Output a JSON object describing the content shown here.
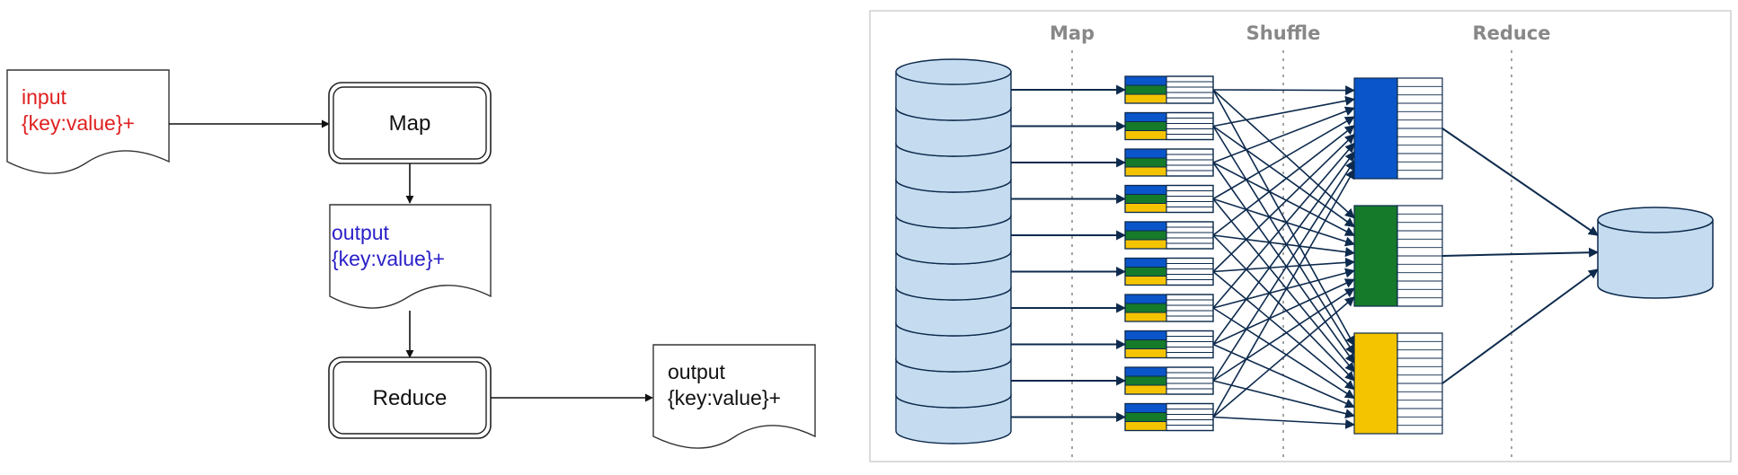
{
  "flowchart": {
    "input_doc": {
      "line1": "input",
      "line2": "{key:value}+",
      "color": "#e02020"
    },
    "map_box": {
      "label": "Map"
    },
    "intermediate_doc": {
      "line1": "output",
      "line2": "{key:value}+",
      "color": "#2a1fc9"
    },
    "reduce_box": {
      "label": "Reduce"
    },
    "output_doc": {
      "line1": "output",
      "line2": "{key:value}+",
      "color": "#111111"
    }
  },
  "pipeline": {
    "phases": [
      "Map",
      "Shuffle",
      "Reduce"
    ],
    "input_shards": 10,
    "map_tasks": 10,
    "reduce_tasks": 3,
    "colors": {
      "store_fill": "#c5dcf0",
      "edge": "#0d2a4d",
      "partition_blue": "#0a55c9",
      "partition_green": "#157a2a",
      "partition_yellow": "#f5c400",
      "phase_divider": "#9a9a9a"
    }
  }
}
